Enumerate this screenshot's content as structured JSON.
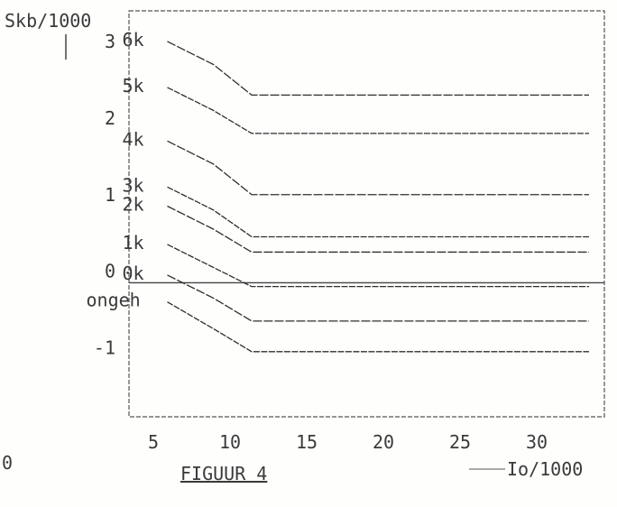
{
  "chart_data": {
    "type": "line",
    "title": "FIGUUR 4",
    "ylabel": "Skb/1000",
    "xlabel": "Io/1000",
    "y_ticks": [
      "3",
      "2",
      "1",
      "0",
      "-1"
    ],
    "x_ticks": [
      "5",
      "10",
      "15",
      "20",
      "25",
      "30"
    ],
    "xlim": [
      4,
      35
    ],
    "ylim": [
      -1.9,
      3.4
    ],
    "grid": false,
    "series": [
      {
        "name": "6k",
        "x": [
          6.5,
          9.5,
          12,
          34
        ],
        "y": [
          3.0,
          2.7,
          2.3,
          2.3
        ]
      },
      {
        "name": "5k",
        "x": [
          6.5,
          9.5,
          12,
          34
        ],
        "y": [
          2.4,
          2.1,
          1.8,
          1.8
        ]
      },
      {
        "name": "4k",
        "x": [
          6.5,
          9.5,
          12,
          34
        ],
        "y": [
          1.7,
          1.4,
          1.0,
          1.0
        ]
      },
      {
        "name": "3k",
        "x": [
          6.5,
          9.5,
          12,
          34
        ],
        "y": [
          1.1,
          0.8,
          0.45,
          0.45
        ]
      },
      {
        "name": "2k",
        "x": [
          6.5,
          9.5,
          12,
          34
        ],
        "y": [
          0.85,
          0.55,
          0.25,
          0.25
        ]
      },
      {
        "name": "1k",
        "x": [
          6.5,
          9.5,
          12,
          34
        ],
        "y": [
          0.35,
          0.05,
          -0.2,
          -0.2
        ]
      },
      {
        "name": "0k",
        "x": [
          6.5,
          9.5,
          12,
          34
        ],
        "y": [
          -0.05,
          -0.35,
          -0.65,
          -0.65
        ]
      },
      {
        "name": "ongeh",
        "x": [
          6.5,
          9.5,
          12,
          34
        ],
        "y": [
          -0.4,
          -0.75,
          -1.05,
          -1.05
        ]
      }
    ]
  },
  "corner_mark": "0"
}
